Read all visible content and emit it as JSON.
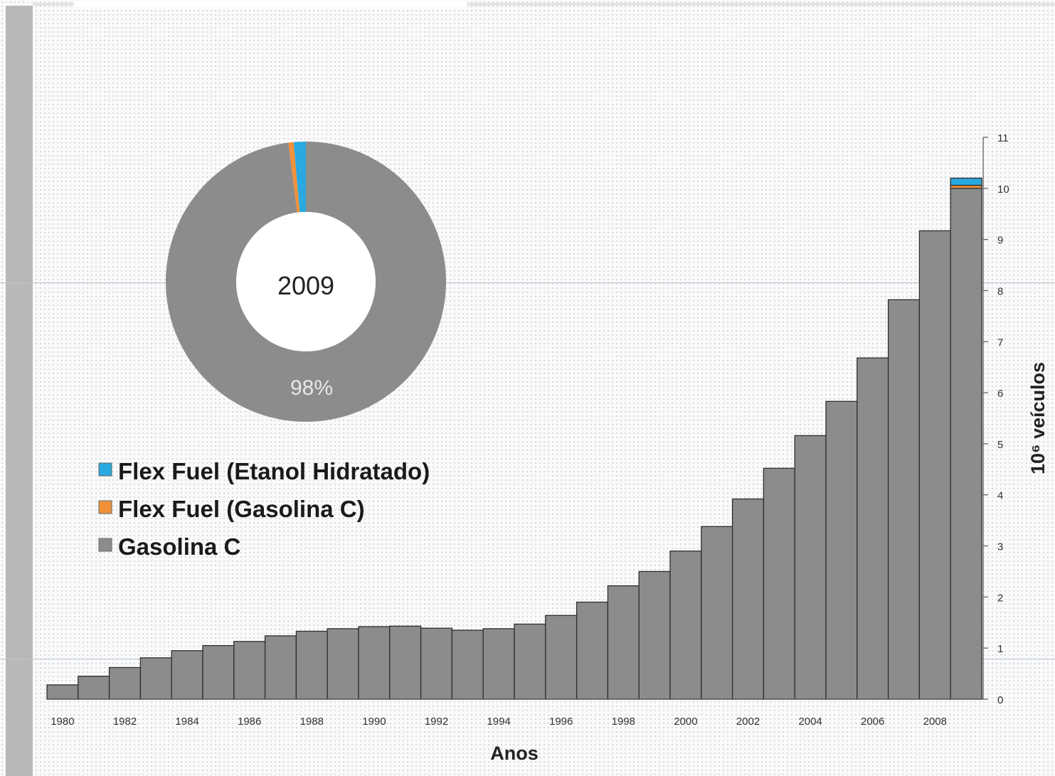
{
  "chart_data": {
    "type": "bar",
    "stacked": true,
    "xlabel": "Anos",
    "ylabel": "10⁶ veículos",
    "ylim": [
      0,
      11
    ],
    "yticks": [
      0,
      1,
      2,
      3,
      4,
      5,
      6,
      7,
      8,
      9,
      10,
      11
    ],
    "y_axis_side": "right",
    "xtick_labels": [
      "1980",
      "1982",
      "1984",
      "1986",
      "1988",
      "1990",
      "1992",
      "1994",
      "1996",
      "1998",
      "2000",
      "2002",
      "2004",
      "2006",
      "2008"
    ],
    "categories": [
      "1980",
      "1981",
      "1982",
      "1983",
      "1984",
      "1985",
      "1986",
      "1987",
      "1988",
      "1989",
      "1990",
      "1991",
      "1992",
      "1993",
      "1994",
      "1995",
      "1996",
      "1997",
      "1998",
      "1999",
      "2000",
      "2001",
      "2002",
      "2003",
      "2004",
      "2005",
      "2006",
      "2007",
      "2008",
      "2009"
    ],
    "series": [
      {
        "name": "Gasolina C",
        "color": "#8c8c8c",
        "values": [
          0.28,
          0.45,
          0.62,
          0.81,
          0.95,
          1.05,
          1.13,
          1.24,
          1.33,
          1.38,
          1.42,
          1.43,
          1.39,
          1.35,
          1.38,
          1.47,
          1.64,
          1.9,
          2.22,
          2.5,
          2.9,
          3.38,
          3.92,
          4.52,
          5.16,
          5.83,
          6.68,
          7.82,
          9.17,
          10.0
        ]
      },
      {
        "name": "Flex Fuel (Gasolina C)",
        "color": "#f0913a",
        "values": [
          0,
          0,
          0,
          0,
          0,
          0,
          0,
          0,
          0,
          0,
          0,
          0,
          0,
          0,
          0,
          0,
          0,
          0,
          0,
          0,
          0,
          0,
          0,
          0,
          0,
          0,
          0,
          0,
          0,
          0.06
        ]
      },
      {
        "name": "Flex Fuel (Etanol Hidratado)",
        "color": "#2aa9e0",
        "values": [
          0,
          0,
          0,
          0,
          0,
          0,
          0,
          0,
          0,
          0,
          0,
          0,
          0,
          0,
          0,
          0,
          0,
          0,
          0,
          0,
          0,
          0,
          0,
          0,
          0,
          0,
          0,
          0,
          0,
          0.14
        ]
      }
    ],
    "legend": {
      "placement": "left-middle",
      "items": [
        {
          "label": "Flex Fuel (Etanol Hidratado)",
          "color": "#2aa9e0"
        },
        {
          "label": "Flex Fuel (Gasolina C)",
          "color": "#f0913a"
        },
        {
          "label": "Gasolina C",
          "color": "#8c8c8c"
        }
      ]
    },
    "inset": {
      "type": "pie",
      "donut": true,
      "center_label": "2009",
      "slice_label": "98%",
      "slices": [
        {
          "name": "Gasolina C",
          "value": 98,
          "color": "#8c8c8c"
        },
        {
          "name": "Flex Fuel (Gasolina C)",
          "value": 0.6,
          "color": "#f0913a"
        },
        {
          "name": "Flex Fuel (Etanol Hidratado)",
          "value": 1.4,
          "color": "#2aa9e0"
        }
      ]
    }
  }
}
